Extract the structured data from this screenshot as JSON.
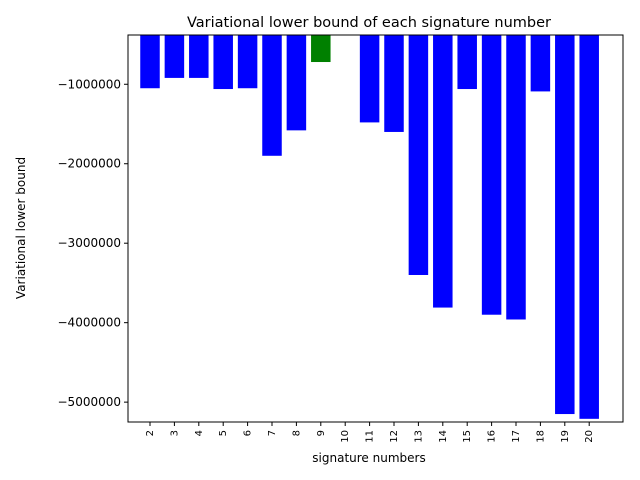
{
  "chart_data": {
    "type": "bar",
    "title": "Variational lower bound of each signature number",
    "xlabel": "signature numbers",
    "ylabel": "Variational lower bound",
    "categories": [
      "2",
      "3",
      "4",
      "5",
      "6",
      "7",
      "8",
      "9",
      "10",
      "11",
      "12",
      "13",
      "14",
      "15",
      "16",
      "17",
      "18",
      "19",
      "20"
    ],
    "values": [
      -1050000,
      -920000,
      -920000,
      -1060000,
      -1050000,
      -1900000,
      -1580000,
      -720000,
      null,
      -1480000,
      -1600000,
      -3400000,
      -3810000,
      -1060000,
      -3900000,
      -3960000,
      -1090000,
      -5150000,
      -5210000
    ],
    "colors": [
      "#0000ff",
      "#0000ff",
      "#0000ff",
      "#0000ff",
      "#0000ff",
      "#0000ff",
      "#0000ff",
      "#008000",
      "#0000ff",
      "#0000ff",
      "#0000ff",
      "#0000ff",
      "#0000ff",
      "#0000ff",
      "#0000ff",
      "#0000ff",
      "#0000ff",
      "#0000ff",
      "#0000ff"
    ],
    "highlight_color": "#008000",
    "bar_color": "#0000ff",
    "ylim": [
      -5250000,
      -380000
    ],
    "yticks": [
      -1000000,
      -2000000,
      -3000000,
      -4000000,
      -5000000
    ],
    "ytick_labels": [
      "−1000000",
      "−2000000",
      "−3000000",
      "−4000000",
      "−5000000"
    ],
    "grid": false,
    "legend": "none"
  }
}
